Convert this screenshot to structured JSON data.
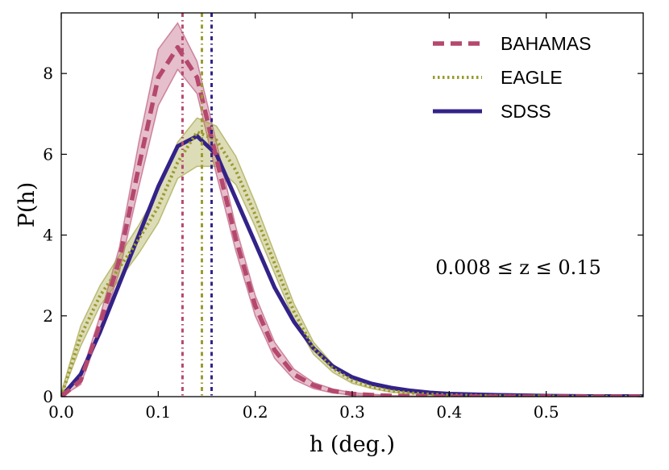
{
  "chart_data": {
    "type": "line",
    "title": "",
    "xlabel": "h (deg.)",
    "ylabel": "P(h)",
    "xlim": [
      0,
      0.6
    ],
    "ylim": [
      0,
      9.5
    ],
    "xticks": [
      "0.0",
      "0.1",
      "0.2",
      "0.3",
      "0.4",
      "0.5"
    ],
    "xtick_values": [
      0,
      0.1,
      0.2,
      0.3,
      0.4,
      0.5
    ],
    "yticks": [
      "0",
      "2",
      "4",
      "6",
      "8"
    ],
    "ytick_values": [
      0,
      2,
      4,
      6,
      8
    ],
    "grid": false,
    "legend_position": "top-right",
    "annotation": "0.008 ≤ z ≤ 0.15",
    "series": [
      {
        "name": "BAHAMAS",
        "color": "#b5486e",
        "style": "dashed",
        "x": [
          0,
          0.02,
          0.04,
          0.06,
          0.08,
          0.1,
          0.12,
          0.14,
          0.16,
          0.18,
          0.2,
          0.22,
          0.24,
          0.26,
          0.28,
          0.3,
          0.32,
          0.34,
          0.36,
          0.38,
          0.4,
          0.45,
          0.5,
          0.55,
          0.6
        ],
        "values": [
          0.0,
          0.4,
          1.8,
          3.4,
          5.7,
          7.9,
          8.65,
          7.9,
          5.9,
          3.9,
          2.25,
          1.15,
          0.55,
          0.28,
          0.14,
          0.07,
          0.04,
          0.02,
          0.01,
          0.01,
          0.0,
          0.0,
          0.0,
          0.0,
          0.0
        ],
        "upper": [
          0.05,
          0.5,
          2.0,
          3.7,
          6.3,
          8.6,
          9.25,
          8.3,
          6.3,
          4.2,
          2.5,
          1.35,
          0.68,
          0.35,
          0.19,
          0.1,
          0.06,
          0.03,
          0.02,
          0.01,
          0.01,
          0.0,
          0.0,
          0.0,
          0.0
        ],
        "lower": [
          0.0,
          0.3,
          1.6,
          3.1,
          5.2,
          7.2,
          8.1,
          7.5,
          5.5,
          3.6,
          2.0,
          0.95,
          0.42,
          0.2,
          0.09,
          0.04,
          0.02,
          0.01,
          0.0,
          0.0,
          0.0,
          0.0,
          0.0,
          0.0,
          0.0
        ],
        "marker": 0.125
      },
      {
        "name": "EAGLE",
        "color": "#9b9a30",
        "style": "dotted",
        "x": [
          0,
          0.02,
          0.04,
          0.06,
          0.08,
          0.1,
          0.12,
          0.14,
          0.16,
          0.18,
          0.2,
          0.22,
          0.24,
          0.26,
          0.28,
          0.3,
          0.32,
          0.34,
          0.36,
          0.38,
          0.4,
          0.45,
          0.5,
          0.55,
          0.6
        ],
        "values": [
          0.0,
          1.5,
          2.5,
          3.2,
          3.9,
          4.7,
          5.8,
          6.55,
          6.35,
          5.6,
          4.5,
          3.3,
          2.1,
          1.2,
          0.7,
          0.4,
          0.24,
          0.14,
          0.09,
          0.06,
          0.04,
          0.02,
          0.01,
          0.0,
          0.0
        ],
        "upper": [
          0.1,
          1.75,
          2.75,
          3.5,
          4.25,
          5.1,
          6.3,
          6.9,
          6.7,
          5.95,
          4.8,
          3.55,
          2.3,
          1.35,
          0.8,
          0.47,
          0.28,
          0.17,
          0.11,
          0.07,
          0.05,
          0.03,
          0.02,
          0.01,
          0.01
        ],
        "lower": [
          0.0,
          1.25,
          2.25,
          2.9,
          3.55,
          4.3,
          5.4,
          5.7,
          5.7,
          5.25,
          4.2,
          3.05,
          1.9,
          1.05,
          0.6,
          0.33,
          0.2,
          0.11,
          0.07,
          0.04,
          0.03,
          0.01,
          0.0,
          0.0,
          0.0
        ],
        "marker": 0.145
      },
      {
        "name": "SDSS",
        "color": "#332288",
        "style": "solid",
        "x": [
          0,
          0.02,
          0.04,
          0.06,
          0.08,
          0.1,
          0.12,
          0.14,
          0.16,
          0.18,
          0.2,
          0.22,
          0.24,
          0.26,
          0.28,
          0.3,
          0.32,
          0.34,
          0.36,
          0.38,
          0.4,
          0.45,
          0.5,
          0.55,
          0.6
        ],
        "values": [
          0.0,
          0.55,
          1.6,
          2.8,
          4.0,
          5.2,
          6.2,
          6.45,
          6.0,
          4.9,
          3.8,
          2.7,
          1.85,
          1.2,
          0.75,
          0.48,
          0.32,
          0.22,
          0.15,
          0.1,
          0.07,
          0.04,
          0.02,
          0.01,
          0.01
        ],
        "marker": 0.155
      }
    ]
  }
}
